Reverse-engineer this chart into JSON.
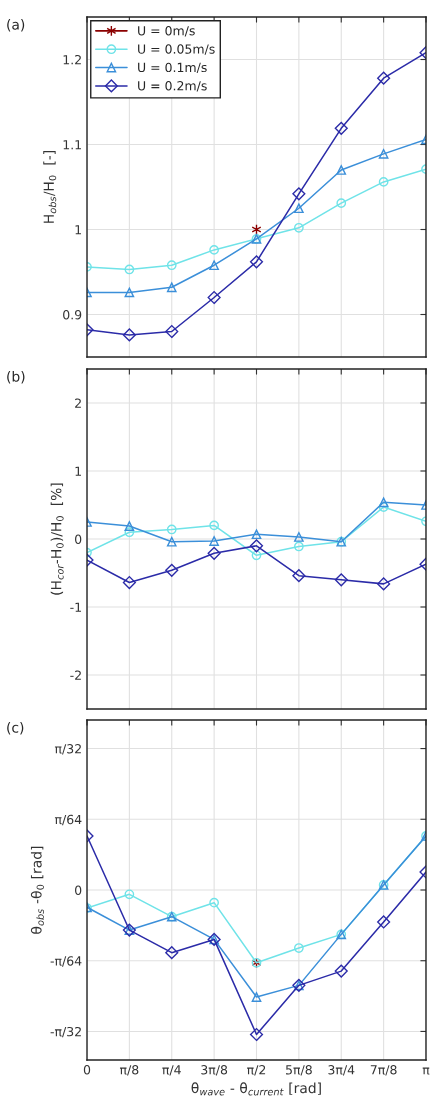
{
  "chart_data": [
    {
      "type": "line",
      "ylabel": "H$_{obs}$/H$_{0}$  [-]",
      "annotations": [
        "(a)"
      ],
      "legend": "top left",
      "grid": true,
      "tick_labels": "y",
      "x": [
        0,
        0.3927,
        0.7854,
        1.1781,
        1.5708,
        1.9635,
        2.3562,
        2.7489,
        3.1416
      ],
      "xlim": [
        0,
        3.1416
      ],
      "xticks": [
        0,
        0.3927,
        0.7854,
        1.1781,
        1.5708,
        1.9635,
        2.3562,
        2.7489,
        3.1416
      ],
      "ylim": [
        0.85,
        1.25
      ],
      "yticks": [
        0.9,
        1,
        1.1,
        1.2
      ],
      "series": [
        {
          "name": "U = 0m/s",
          "color": "#8b0000",
          "marker": "cross",
          "values": [
            null,
            null,
            null,
            null,
            1.0,
            null,
            null,
            null,
            null
          ]
        },
        {
          "name": "U = 0.05m/s",
          "color": "#6fe3e8",
          "marker": "circle",
          "values": [
            0.956,
            0.953,
            0.958,
            0.976,
            0.989,
            1.002,
            1.031,
            1.056,
            1.071
          ]
        },
        {
          "name": "U = 0.1m/s",
          "color": "#3b8fd9",
          "marker": "triangle",
          "values": [
            0.926,
            0.926,
            0.932,
            0.958,
            0.989,
            1.025,
            1.07,
            1.089,
            1.106
          ]
        },
        {
          "name": "U = 0.2m/s",
          "color": "#2b2ba8",
          "marker": "diamond",
          "values": [
            0.882,
            0.876,
            0.88,
            0.92,
            0.962,
            1.042,
            1.119,
            1.178,
            1.208
          ]
        }
      ]
    },
    {
      "type": "line",
      "ylabel": "(H$_{cor}$-H$_{0}$)/H$_{0}$  [%]",
      "annotations": [
        "(b)"
      ],
      "grid": true,
      "tick_labels": "y",
      "x": [
        0,
        0.3927,
        0.7854,
        1.1781,
        1.5708,
        1.9635,
        2.3562,
        2.7489,
        3.1416
      ],
      "xlim": [
        0,
        3.1416
      ],
      "xticks": [
        0,
        0.3927,
        0.7854,
        1.1781,
        1.5708,
        1.9635,
        2.3562,
        2.7489,
        3.1416
      ],
      "ylim": [
        -2.5,
        2.5
      ],
      "yticks": [
        -2,
        -1,
        0,
        1,
        2
      ],
      "series": [
        {
          "color": "#6fe3e8",
          "marker": "circle",
          "values": [
            -0.2,
            0.1,
            0.14,
            0.2,
            -0.24,
            -0.11,
            -0.04,
            0.47,
            0.26
          ]
        },
        {
          "color": "#3b8fd9",
          "marker": "triangle",
          "values": [
            0.25,
            0.19,
            -0.04,
            -0.03,
            0.07,
            0.03,
            -0.04,
            0.54,
            0.5
          ]
        },
        {
          "color": "#2b2ba8",
          "marker": "diamond",
          "values": [
            -0.31,
            -0.64,
            -0.46,
            -0.21,
            -0.1,
            -0.54,
            -0.6,
            -0.66,
            -0.37
          ]
        }
      ]
    },
    {
      "type": "line",
      "xlabel": "θ$_{wave}$ - θ$_{current}$ [rad]",
      "ylabel": "θ$_{obs}$ -θ$_{0}$ [rad]",
      "annotations": [
        "(c)"
      ],
      "grid": true,
      "x": [
        0,
        0.3927,
        0.7854,
        1.1781,
        1.5708,
        1.9635,
        2.3562,
        2.7489,
        3.1416
      ],
      "xlim": [
        0,
        3.1416
      ],
      "xticks": [
        {
          "value": 0,
          "label": "0"
        },
        {
          "value": 0.3927,
          "label": "π/8"
        },
        {
          "value": 0.7854,
          "label": "π/4"
        },
        {
          "value": 1.1781,
          "label": "3π/8"
        },
        {
          "value": 1.5708,
          "label": "π/2"
        },
        {
          "value": 1.9635,
          "label": "5π/8"
        },
        {
          "value": 2.3562,
          "label": "3π/4"
        },
        {
          "value": 2.7489,
          "label": "7π/8"
        },
        {
          "value": 3.1416,
          "label": "π"
        }
      ],
      "ylim": [
        -0.118,
        0.118
      ],
      "yticks": [
        {
          "value": -0.09817,
          "label": "-π/32"
        },
        {
          "value": -0.04909,
          "label": "-π/64"
        },
        {
          "value": 0,
          "label": "0"
        },
        {
          "value": 0.04909,
          "label": "π/64"
        },
        {
          "value": 0.09817,
          "label": "π/32"
        }
      ],
      "series": [
        {
          "color": "#8b0000",
          "marker": "cross",
          "values": [
            null,
            null,
            null,
            null,
            -0.0505,
            null,
            null,
            null,
            null
          ]
        },
        {
          "color": "#6fe3e8",
          "marker": "circle",
          "values": [
            -0.0125,
            -0.003,
            -0.0185,
            -0.0088,
            -0.0505,
            -0.0403,
            -0.0308,
            0.0035,
            0.0375
          ]
        },
        {
          "color": "#3b8fd9",
          "marker": "triangle",
          "values": [
            -0.012,
            -0.0278,
            -0.0185,
            -0.0343,
            -0.0743,
            -0.0662,
            -0.0308,
            0.0035,
            0.0375
          ]
        },
        {
          "color": "#2b2ba8",
          "marker": "diamond",
          "values": [
            0.0375,
            -0.0278,
            -0.0435,
            -0.0343,
            -0.1003,
            -0.0662,
            -0.0563,
            -0.0222,
            0.0125
          ]
        }
      ]
    }
  ]
}
